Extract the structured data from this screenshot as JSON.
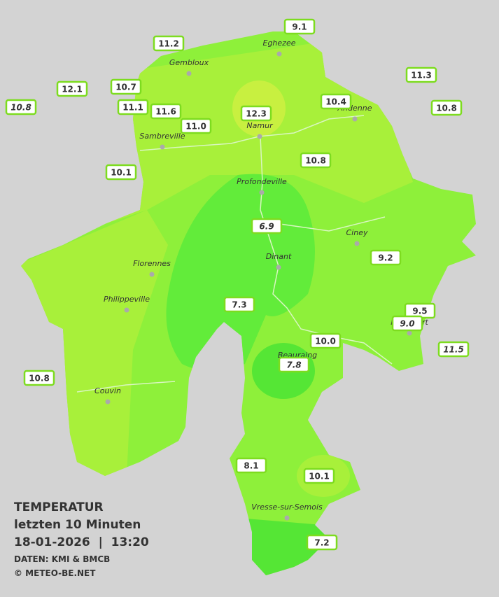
{
  "legend": {
    "title": "TEMPERATUR",
    "subtitle": "letzten 10 Minuten",
    "datetime": "18-01-2026  |  13:20",
    "source": "DATEN: KMI & BMCB",
    "copyright": "© METEO-BE.NET"
  },
  "places": [
    "Eghezee",
    "Gembloux",
    "Andenne",
    "Namur",
    "Sambreville",
    "Profondeville",
    "Ciney",
    "Dinant",
    "Florennes",
    "Philippeville",
    "Beauraing",
    "Rochefort",
    "Couvin",
    "Vresse-sur-Semois"
  ],
  "readings": [
    "9.1",
    "11.2",
    "11.3",
    "12.1",
    "10.7",
    "10.8",
    "11.1",
    "11.6",
    "10.4",
    "10.8",
    "12.3",
    "11.0",
    "10.8",
    "10.1",
    "6.9",
    "9.2",
    "7.3",
    "9.5",
    "9.0",
    "10.0",
    "11.5",
    "7.8",
    "10.8",
    "8.1",
    "10.1",
    "7.2"
  ]
}
